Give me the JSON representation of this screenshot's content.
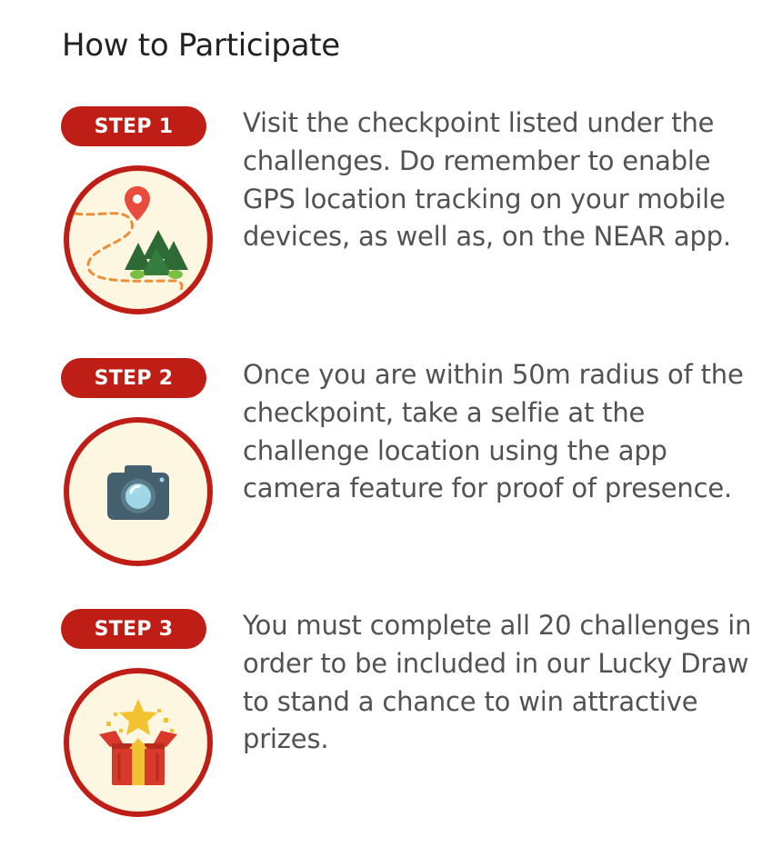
{
  "title": "How to Participate",
  "steps": [
    {
      "badge": "STEP 1",
      "icon": "map-route-pin-icon",
      "text": "Visit the checkpoint listed under the challenges. Do remember to enable GPS location tracking on your mobile devices, as well as, on the NEAR app."
    },
    {
      "badge": "STEP 2",
      "icon": "camera-icon",
      "text": "Once you are within 50m radius of the checkpoint, take a selfie at the challenge location using the app camera feature for proof of presence."
    },
    {
      "badge": "STEP 3",
      "icon": "gift-box-star-icon",
      "text": "You must complete all 20 challenges in order to be included in our Lucky Draw to stand a chance to win attractive prizes."
    }
  ],
  "colors": {
    "accent": "#bf1e16",
    "icon_background": "#fdf6e1",
    "text": "#525252"
  }
}
